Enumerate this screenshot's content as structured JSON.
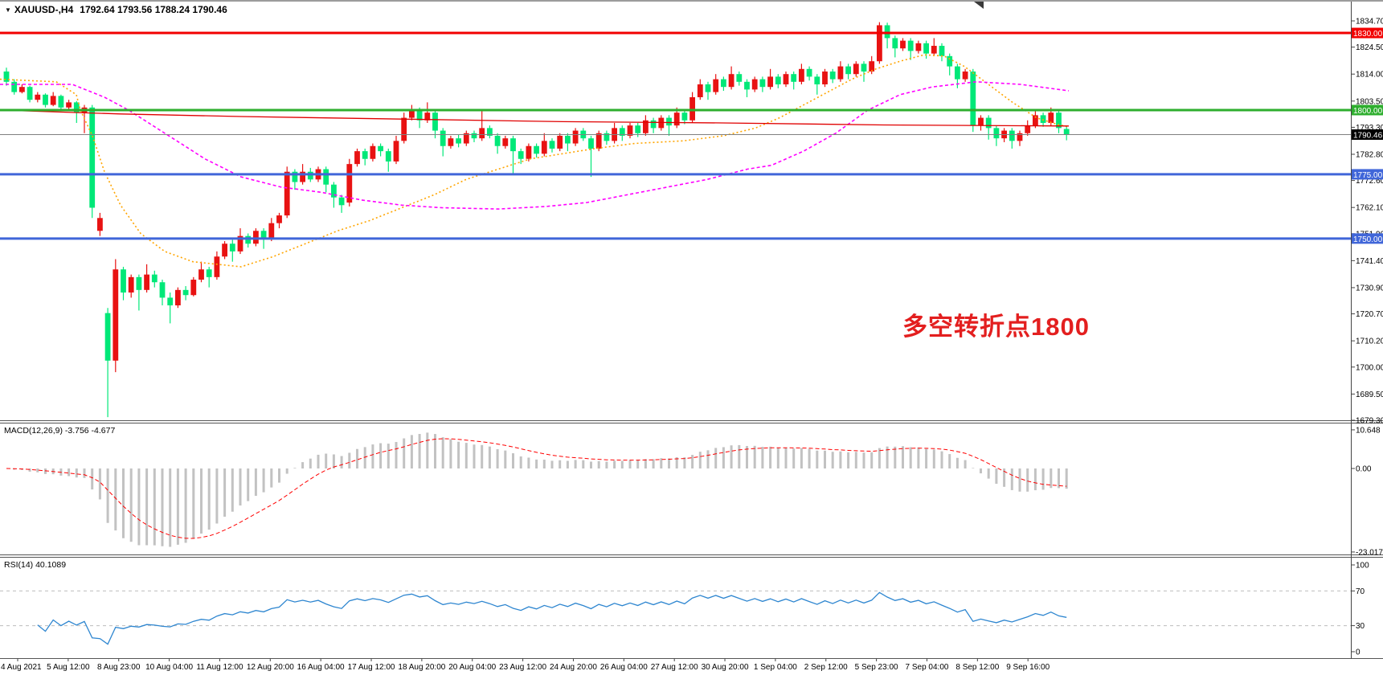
{
  "window": {
    "dropdown_icon": "▼",
    "title_symbol": "XAUUSD-,H4",
    "title_ohlc": "1792.64 1793.56 1788.24 1790.46"
  },
  "annotation": {
    "text": "多空转折点1800",
    "color": "#e31f1f"
  },
  "chart_data": {
    "type": "candlestick",
    "symbol_timeframe": "XAUUSD-,H4",
    "last_ohlc": {
      "open": 1792.64,
      "high": 1793.56,
      "low": 1788.24,
      "close": 1790.46
    },
    "ylim": [
      1679.3,
      1839.8
    ],
    "grid": "off",
    "candle_up_color": "#e81212",
    "candle_down_color": "#00e878",
    "price_axis": {
      "labels": [
        "1834.70",
        "1824.50",
        "1814.00",
        "1803.50",
        "1793.30",
        "1782.80",
        "1772.60",
        "1762.10",
        "1751.90",
        "1741.40",
        "1730.90",
        "1720.70",
        "1710.20",
        "1700.00",
        "1689.50",
        "1679.30"
      ]
    },
    "time_axis": {
      "labels": [
        "4 Aug 2021",
        "5 Aug 12:00",
        "8 Aug 23:00",
        "10 Aug 04:00",
        "11 Aug 12:00",
        "12 Aug 20:00",
        "16 Aug 04:00",
        "17 Aug 12:00",
        "18 Aug 20:00",
        "20 Aug 04:00",
        "23 Aug 12:00",
        "24 Aug 20:00",
        "26 Aug 04:00",
        "27 Aug 12:00",
        "30 Aug 20:00",
        "1 Sep 04:00",
        "2 Sep 12:00",
        "5 Sep 23:00",
        "7 Sep 04:00",
        "8 Sep 12:00",
        "9 Sep 16:00"
      ]
    },
    "hlines": [
      {
        "price": 1830.0,
        "label": "1830.00",
        "line_color": "#f20000",
        "line_width": 3,
        "badge_bg": "#f20000",
        "badge_fg": "#ffffff"
      },
      {
        "price": 1800.0,
        "label": "1800.00",
        "line_color": "#2eae2e",
        "line_width": 3,
        "badge_bg": "#2eae2e",
        "badge_fg": "#ffffff"
      },
      {
        "price": 1790.46,
        "label": "1790.46",
        "line_color": "#808080",
        "line_width": 1,
        "badge_bg": "#000000",
        "badge_fg": "#ffffff"
      },
      {
        "price": 1775.0,
        "label": "1775.00",
        "line_color": "#4066d9",
        "line_width": 3,
        "badge_bg": "#4066d9",
        "badge_fg": "#ffffff"
      },
      {
        "price": 1750.0,
        "label": "1750.00",
        "line_color": "#4066d9",
        "line_width": 3,
        "badge_bg": "#4066d9",
        "badge_fg": "#ffffff"
      }
    ],
    "moving_averages": [
      {
        "name": "ma-orange",
        "color": "#ffa500",
        "dash": "2 3",
        "width": 1.6,
        "points": [
          [
            0,
            1812
          ],
          [
            70,
            1811
          ],
          [
            95,
            1806
          ],
          [
            100,
            1800
          ],
          [
            115,
            1790
          ],
          [
            130,
            1776
          ],
          [
            150,
            1763
          ],
          [
            175,
            1752
          ],
          [
            205,
            1745
          ],
          [
            240,
            1741
          ],
          [
            300,
            1739
          ],
          [
            340,
            1743
          ],
          [
            380,
            1748
          ],
          [
            420,
            1753
          ],
          [
            460,
            1757
          ],
          [
            500,
            1762
          ],
          [
            540,
            1767
          ],
          [
            580,
            1773
          ],
          [
            620,
            1777
          ],
          [
            660,
            1781
          ],
          [
            700,
            1783
          ],
          [
            740,
            1785
          ],
          [
            790,
            1787
          ],
          [
            850,
            1788
          ],
          [
            900,
            1790
          ],
          [
            940,
            1793
          ],
          [
            970,
            1797
          ],
          [
            1000,
            1802
          ],
          [
            1030,
            1807
          ],
          [
            1060,
            1812
          ],
          [
            1090,
            1816
          ],
          [
            1120,
            1819
          ],
          [
            1150,
            1821.5
          ],
          [
            1175,
            1821
          ],
          [
            1200,
            1817
          ],
          [
            1230,
            1810
          ],
          [
            1260,
            1803
          ],
          [
            1290,
            1797
          ],
          [
            1315,
            1794.5
          ],
          [
            1330,
            1793.5
          ]
        ]
      },
      {
        "name": "ma-magenta",
        "color": "#ff00ff",
        "dash": "4 3",
        "width": 1.6,
        "points": [
          [
            0,
            1810
          ],
          [
            90,
            1810
          ],
          [
            130,
            1805
          ],
          [
            160,
            1800
          ],
          [
            190,
            1794
          ],
          [
            220,
            1788
          ],
          [
            255,
            1781
          ],
          [
            300,
            1774
          ],
          [
            350,
            1770
          ],
          [
            400,
            1768
          ],
          [
            450,
            1765
          ],
          [
            500,
            1763
          ],
          [
            550,
            1762
          ],
          [
            620,
            1761.5
          ],
          [
            680,
            1762.5
          ],
          [
            730,
            1764
          ],
          [
            780,
            1767
          ],
          [
            830,
            1770
          ],
          [
            880,
            1773
          ],
          [
            930,
            1777
          ],
          [
            960,
            1778.5
          ],
          [
            1000,
            1784
          ],
          [
            1040,
            1791
          ],
          [
            1080,
            1800
          ],
          [
            1120,
            1806
          ],
          [
            1160,
            1809
          ],
          [
            1215,
            1811
          ],
          [
            1270,
            1810
          ],
          [
            1330,
            1807.5
          ]
        ]
      },
      {
        "name": "ma-red",
        "color": "#e00000",
        "dash": "",
        "width": 1.3,
        "points": [
          [
            0,
            1800
          ],
          [
            150,
            1798.5
          ],
          [
            300,
            1797.5
          ],
          [
            500,
            1796.5
          ],
          [
            700,
            1795.5
          ],
          [
            900,
            1795
          ],
          [
            1100,
            1794.2
          ],
          [
            1330,
            1793.8
          ]
        ]
      }
    ],
    "candles": [
      [
        1815.0,
        1816.5,
        1809.5,
        1811.0
      ],
      [
        1811.0,
        1812.0,
        1806.0,
        1807.0
      ],
      [
        1807.0,
        1810.0,
        1806.5,
        1809.0
      ],
      [
        1809.0,
        1809.5,
        1803.0,
        1804.0
      ],
      [
        1804.0,
        1807.0,
        1803.0,
        1806.0
      ],
      [
        1806.0,
        1806.5,
        1801.0,
        1802.0
      ],
      [
        1802.0,
        1807.0,
        1801.5,
        1805.5
      ],
      [
        1805.5,
        1806.0,
        1799.5,
        1801.0
      ],
      [
        1801.0,
        1804.0,
        1800.0,
        1803.0
      ],
      [
        1803.0,
        1803.5,
        1795.0,
        1799.0
      ],
      [
        1799.0,
        1802.0,
        1791.0,
        1801.0
      ],
      [
        1801.0,
        1802.0,
        1758.0,
        1762.0
      ],
      [
        1753.0,
        1760.0,
        1751.0,
        1758.0
      ],
      [
        1721.0,
        1723.0,
        1680.5,
        1702.5
      ],
      [
        1702.5,
        1742.0,
        1698.0,
        1738.0
      ],
      [
        1738.0,
        1739.0,
        1726.0,
        1729.0
      ],
      [
        1729.0,
        1736.0,
        1727.0,
        1735.0
      ],
      [
        1735.0,
        1736.0,
        1722.0,
        1730.0
      ],
      [
        1730.0,
        1740.0,
        1729.0,
        1736.0
      ],
      [
        1736.0,
        1737.5,
        1731.0,
        1733.0
      ],
      [
        1733.0,
        1734.0,
        1724.0,
        1727.0
      ],
      [
        1727.0,
        1729.0,
        1717.0,
        1724.0
      ],
      [
        1724.0,
        1731.0,
        1723.0,
        1730.0
      ],
      [
        1730.0,
        1731.5,
        1726.0,
        1728.0
      ],
      [
        1728.0,
        1735.0,
        1727.5,
        1734.0
      ],
      [
        1734.0,
        1741.0,
        1733.0,
        1738.0
      ],
      [
        1738.0,
        1739.0,
        1731.0,
        1735.0
      ],
      [
        1735.0,
        1745.0,
        1734.0,
        1743.0
      ],
      [
        1743.0,
        1749.0,
        1742.0,
        1748.0
      ],
      [
        1748.0,
        1749.5,
        1741.0,
        1745.0
      ],
      [
        1745.0,
        1754.0,
        1744.0,
        1751.0
      ],
      [
        1751.0,
        1752.0,
        1746.5,
        1748.0
      ],
      [
        1748.0,
        1754.0,
        1747.0,
        1753.0
      ],
      [
        1753.0,
        1754.0,
        1746.0,
        1750.0
      ],
      [
        1750.0,
        1758.0,
        1749.0,
        1756.0
      ],
      [
        1756.0,
        1760.0,
        1754.0,
        1759.0
      ],
      [
        1759.0,
        1778.0,
        1758.0,
        1776.0
      ],
      [
        1776.0,
        1777.0,
        1769.0,
        1772.0
      ],
      [
        1772.0,
        1779.0,
        1771.0,
        1776.0
      ],
      [
        1776.0,
        1777.5,
        1772.0,
        1773.0
      ],
      [
        1773.0,
        1778.0,
        1772.0,
        1777.0
      ],
      [
        1777.0,
        1778.0,
        1768.0,
        1771.0
      ],
      [
        1771.0,
        1772.0,
        1762.0,
        1766.0
      ],
      [
        1766.0,
        1767.0,
        1760.0,
        1763.0
      ],
      [
        1764.0,
        1781.0,
        1762.5,
        1779.0
      ],
      [
        1779.0,
        1785.0,
        1778.0,
        1784.0
      ],
      [
        1784.0,
        1785.0,
        1778.5,
        1781.0
      ],
      [
        1781.0,
        1787.0,
        1780.0,
        1786.0
      ],
      [
        1786.0,
        1787.0,
        1782.0,
        1784.0
      ],
      [
        1784.0,
        1785.0,
        1776.0,
        1780.0
      ],
      [
        1780.0,
        1790.0,
        1779.0,
        1788.0
      ],
      [
        1788.0,
        1799.0,
        1787.0,
        1797.0
      ],
      [
        1797.0,
        1802.0,
        1796.0,
        1800.0
      ],
      [
        1800.0,
        1801.0,
        1793.0,
        1796.0
      ],
      [
        1796.0,
        1803.0,
        1795.0,
        1799.0
      ],
      [
        1799.0,
        1800.0,
        1789.0,
        1792.0
      ],
      [
        1792.0,
        1793.0,
        1782.0,
        1786.0
      ],
      [
        1786.0,
        1790.0,
        1785.0,
        1789.0
      ],
      [
        1789.0,
        1790.5,
        1785.5,
        1787.0
      ],
      [
        1787.0,
        1792.0,
        1786.0,
        1791.0
      ],
      [
        1791.0,
        1792.0,
        1787.5,
        1789.0
      ],
      [
        1789.0,
        1800.0,
        1788.0,
        1793.0
      ],
      [
        1793.0,
        1794.0,
        1789.0,
        1790.0
      ],
      [
        1790.0,
        1791.0,
        1783.0,
        1786.0
      ],
      [
        1786.0,
        1790.0,
        1785.0,
        1789.0
      ],
      [
        1789.0,
        1790.0,
        1775.0,
        1784.0
      ],
      [
        1784.0,
        1785.0,
        1779.0,
        1781.0
      ],
      [
        1781.0,
        1787.0,
        1780.0,
        1786.0
      ],
      [
        1786.0,
        1787.0,
        1781.5,
        1783.0
      ],
      [
        1783.0,
        1791.0,
        1782.0,
        1788.0
      ],
      [
        1788.0,
        1789.0,
        1783.5,
        1785.0
      ],
      [
        1785.0,
        1791.0,
        1784.0,
        1790.0
      ],
      [
        1790.0,
        1791.0,
        1784.0,
        1787.0
      ],
      [
        1787.0,
        1793.0,
        1786.0,
        1792.0
      ],
      [
        1792.0,
        1793.0,
        1788.0,
        1789.0
      ],
      [
        1789.0,
        1790.0,
        1774.0,
        1785.0
      ],
      [
        1785.0,
        1792.0,
        1784.0,
        1791.0
      ],
      [
        1791.0,
        1792.0,
        1786.5,
        1788.0
      ],
      [
        1788.0,
        1795.0,
        1787.0,
        1793.0
      ],
      [
        1793.0,
        1794.0,
        1788.0,
        1790.0
      ],
      [
        1790.0,
        1795.0,
        1789.0,
        1794.0
      ],
      [
        1794.0,
        1795.0,
        1789.5,
        1791.0
      ],
      [
        1791.0,
        1798.0,
        1790.0,
        1796.0
      ],
      [
        1796.0,
        1797.0,
        1791.0,
        1793.0
      ],
      [
        1793.0,
        1798.0,
        1792.0,
        1797.0
      ],
      [
        1797.0,
        1798.0,
        1790.0,
        1794.0
      ],
      [
        1794.0,
        1801.0,
        1793.0,
        1799.0
      ],
      [
        1799.0,
        1800.0,
        1794.5,
        1796.0
      ],
      [
        1796.0,
        1807.0,
        1795.0,
        1805.0
      ],
      [
        1805.0,
        1812.0,
        1804.0,
        1810.0
      ],
      [
        1810.0,
        1811.0,
        1804.0,
        1807.0
      ],
      [
        1807.0,
        1814.0,
        1806.0,
        1812.0
      ],
      [
        1812.0,
        1813.0,
        1807.5,
        1809.0
      ],
      [
        1809.0,
        1817.0,
        1808.0,
        1814.0
      ],
      [
        1814.0,
        1815.0,
        1809.5,
        1811.0
      ],
      [
        1811.0,
        1812.0,
        1805.0,
        1808.0
      ],
      [
        1808.0,
        1813.0,
        1807.0,
        1812.0
      ],
      [
        1812.0,
        1813.0,
        1807.0,
        1809.0
      ],
      [
        1809.0,
        1816.0,
        1808.0,
        1813.0
      ],
      [
        1813.0,
        1814.0,
        1808.5,
        1810.0
      ],
      [
        1810.0,
        1815.0,
        1809.0,
        1814.0
      ],
      [
        1814.0,
        1815.0,
        1808.0,
        1811.0
      ],
      [
        1811.0,
        1818.0,
        1810.0,
        1816.0
      ],
      [
        1816.0,
        1817.0,
        1811.5,
        1813.0
      ],
      [
        1813.0,
        1814.0,
        1806.0,
        1810.0
      ],
      [
        1810.0,
        1816.0,
        1809.0,
        1815.0
      ],
      [
        1815.0,
        1816.0,
        1810.5,
        1812.0
      ],
      [
        1812.0,
        1819.0,
        1811.0,
        1817.0
      ],
      [
        1817.0,
        1818.0,
        1812.0,
        1814.0
      ],
      [
        1814.0,
        1819.0,
        1813.0,
        1818.0
      ],
      [
        1818.0,
        1819.0,
        1811.0,
        1815.0
      ],
      [
        1815.0,
        1821.0,
        1814.0,
        1819.0
      ],
      [
        1819.0,
        1834.2,
        1818.0,
        1833.0
      ],
      [
        1833.0,
        1834.0,
        1824.0,
        1828.0
      ],
      [
        1828.0,
        1829.0,
        1820.5,
        1824.0
      ],
      [
        1824.0,
        1828.0,
        1823.0,
        1827.0
      ],
      [
        1827.0,
        1828.0,
        1819.5,
        1823.0
      ],
      [
        1823.0,
        1827.0,
        1822.0,
        1826.0
      ],
      [
        1826.0,
        1827.0,
        1820.0,
        1822.0
      ],
      [
        1822.0,
        1828.0,
        1821.0,
        1825.0
      ],
      [
        1825.0,
        1826.0,
        1819.0,
        1821.0
      ],
      [
        1821.0,
        1822.0,
        1813.5,
        1817.0
      ],
      [
        1817.0,
        1818.0,
        1808.5,
        1812.0
      ],
      [
        1812.0,
        1816.0,
        1811.0,
        1815.0
      ],
      [
        1815.0,
        1816.0,
        1791.5,
        1794.0
      ],
      [
        1794.0,
        1798.0,
        1792.0,
        1797.0
      ],
      [
        1797.0,
        1798.0,
        1788.5,
        1793.0
      ],
      [
        1793.0,
        1794.0,
        1786.0,
        1789.0
      ],
      [
        1789.0,
        1793.0,
        1787.5,
        1792.0
      ],
      [
        1792.0,
        1793.0,
        1785.0,
        1788.0
      ],
      [
        1788.0,
        1792.0,
        1786.0,
        1791.0
      ],
      [
        1791.0,
        1796.0,
        1790.0,
        1794.0
      ],
      [
        1794.0,
        1800.0,
        1793.0,
        1798.0
      ],
      [
        1798.0,
        1799.0,
        1793.5,
        1795.0
      ],
      [
        1795.0,
        1801.0,
        1794.0,
        1799.0
      ],
      [
        1799.0,
        1800.0,
        1791.0,
        1793.0
      ],
      [
        1792.64,
        1793.56,
        1788.24,
        1790.46
      ]
    ],
    "indicators": {
      "macd": {
        "header": "MACD(12,26,9) -3.756 -4.677",
        "params": [
          12,
          26,
          9
        ],
        "current_values": [
          -3.756,
          -4.677
        ],
        "axis_labels": [
          "10.648",
          "0.00",
          "-23.017"
        ],
        "axis_values": [
          10.648,
          0,
          -23.017
        ],
        "histogram_color": "#c2c2c2",
        "signal_color": "#ff0000"
      },
      "rsi": {
        "header": "RSI(14) 40.1089",
        "period": 14,
        "current_value": 40.1089,
        "axis_labels": [
          "100",
          "70",
          "30",
          "0"
        ],
        "axis_values": [
          100,
          70,
          30,
          0
        ],
        "levels": [
          70,
          30
        ],
        "line_color": "#2e86d0",
        "level_color": "#bdbdbd"
      }
    }
  }
}
